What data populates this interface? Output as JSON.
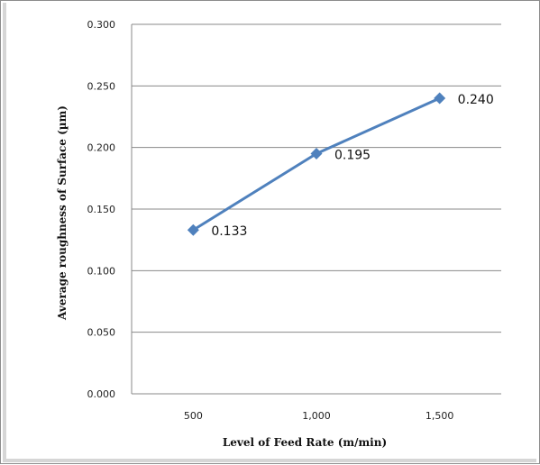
{
  "chart_data": {
    "type": "line",
    "categories": [
      "500",
      "1,000",
      "1,500"
    ],
    "series": [
      {
        "values": [
          0.133,
          0.195,
          0.24
        ],
        "data_labels": [
          "0.133",
          "0.195",
          "0.240"
        ],
        "color": "#4f81bd"
      }
    ],
    "xlabel": "Level of Feed Rate (m/min)",
    "ylabel": "Average roughness of Surface (µm)",
    "ylim": [
      0,
      0.3
    ],
    "yticks": [
      "0.000",
      "0.050",
      "0.100",
      "0.150",
      "0.200",
      "0.250",
      "0.300"
    ],
    "grid": "horizontal",
    "legend": "none",
    "gridline_color": "#888888"
  }
}
